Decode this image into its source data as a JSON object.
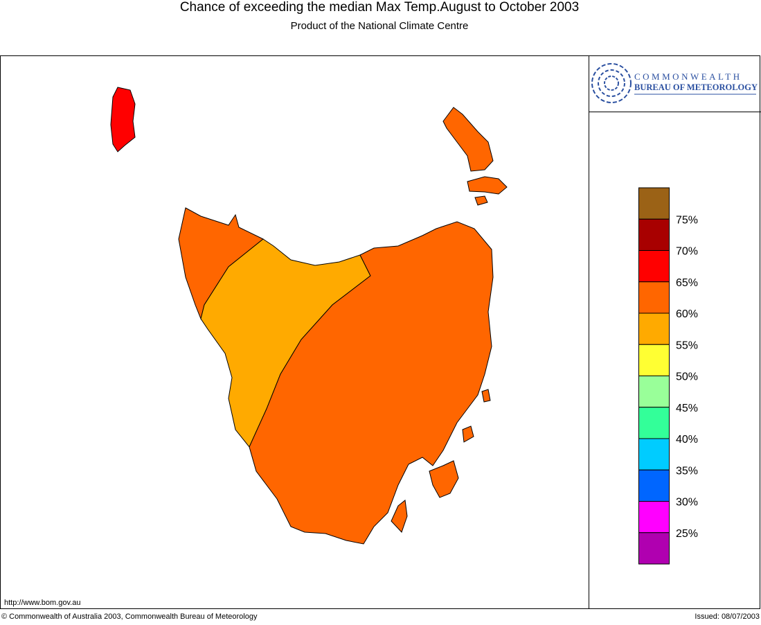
{
  "header": {
    "title": "Chance of exceeding the median Max Temp.August to October 2003",
    "subtitle": "Product of the National Climate Centre"
  },
  "logo": {
    "line1": "COMMONWEALTH",
    "line2": "BUREAU OF METEOROLOGY"
  },
  "legend": {
    "colors": [
      "#9b6216",
      "#a80000",
      "#ff0000",
      "#ff6600",
      "#ffaa00",
      "#ffff33",
      "#99ff99",
      "#33ff99",
      "#00ccff",
      "#0066ff",
      "#ff00ff",
      "#b000b0"
    ],
    "labels": [
      "75%",
      "70%",
      "65%",
      "60%",
      "55%",
      "50%",
      "45%",
      "40%",
      "35%",
      "30%",
      "25%"
    ]
  },
  "footer": {
    "url": "http://www.bom.gov.au",
    "copyright": "© Commonwealth of Australia 2003, Commonwealth Bureau of Meteorology",
    "issued": "Issued: 08/07/2003"
  }
}
